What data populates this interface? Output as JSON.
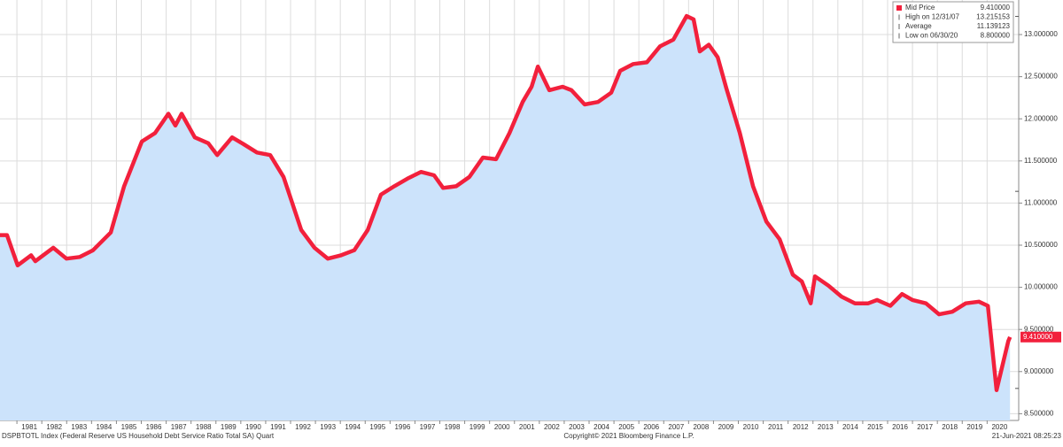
{
  "chart_data": {
    "type": "line",
    "footer_left": "DSPBTOTL Index (Federal Reserve US Household Debt Service Ratio Total SA)  Quart",
    "footer_center": "Copyright© 2021 Bloomberg Finance L.P.",
    "footer_right": "21-Jun-2021 08:25:23",
    "x": [
      1980.32,
      1980.6,
      1981.03,
      1981.57,
      1981.74,
      1982.46,
      1982.99,
      1983.53,
      1984.06,
      1984.77,
      1985.31,
      1986.02,
      1986.55,
      1987.09,
      1987.37,
      1987.62,
      1988.15,
      1988.69,
      1989.05,
      1989.65,
      1990.11,
      1990.65,
      1991.18,
      1991.72,
      1992.43,
      1992.96,
      1993.5,
      1994.03,
      1994.56,
      1995.1,
      1995.63,
      1996.17,
      1996.7,
      1997.24,
      1997.77,
      1998.13,
      1998.66,
      1999.19,
      1999.73,
      2000.26,
      2000.8,
      2001.33,
      2001.69,
      2001.94,
      2002.4,
      2002.93,
      2003.29,
      2003.82,
      2004.36,
      2004.89,
      2005.25,
      2005.78,
      2006.32,
      2006.85,
      2007.39,
      2007.92,
      2008.2,
      2008.45,
      2008.81,
      2009.17,
      2009.52,
      2010.06,
      2010.59,
      2011.13,
      2011.66,
      2012.19,
      2012.55,
      2012.91,
      2013.08,
      2013.62,
      2014.15,
      2014.69,
      2015.22,
      2015.58,
      2016.11,
      2016.58,
      2017.0,
      2017.54,
      2018.07,
      2018.6,
      2019.14,
      2019.67,
      2020.03,
      2020.38,
      2020.85,
      2020.92
    ],
    "series": [
      {
        "name": "Mid Price",
        "color": "#f2203c",
        "values": [
          10.62,
          10.62,
          10.26,
          10.38,
          10.31,
          10.47,
          10.34,
          10.36,
          10.44,
          10.65,
          11.2,
          11.73,
          11.83,
          12.06,
          11.92,
          12.06,
          11.78,
          11.71,
          11.57,
          11.78,
          11.7,
          11.6,
          11.57,
          11.31,
          10.68,
          10.47,
          10.34,
          10.38,
          10.44,
          10.68,
          11.1,
          11.2,
          11.29,
          11.37,
          11.33,
          11.18,
          11.2,
          11.31,
          11.54,
          11.52,
          11.83,
          12.2,
          12.38,
          12.62,
          12.34,
          12.38,
          12.34,
          12.17,
          12.2,
          12.31,
          12.57,
          12.65,
          12.67,
          12.86,
          12.94,
          13.22,
          13.18,
          12.8,
          12.88,
          12.73,
          12.36,
          11.83,
          11.2,
          10.78,
          10.57,
          10.15,
          10.07,
          9.81,
          10.13,
          10.02,
          9.89,
          9.81,
          9.81,
          9.85,
          9.78,
          9.92,
          9.85,
          9.81,
          9.68,
          9.71,
          9.81,
          9.83,
          9.78,
          8.78,
          9.36,
          9.41
        ]
      }
    ],
    "area_color": "#cce3fb",
    "xlim": [
      1980.32,
      2021.27
    ],
    "ylim": [
      8.42,
      13.41
    ],
    "xticks": [
      1981,
      1982,
      1983,
      1984,
      1985,
      1986,
      1987,
      1988,
      1989,
      1990,
      1991,
      1992,
      1993,
      1994,
      1995,
      1996,
      1997,
      1998,
      1999,
      2000,
      2001,
      2002,
      2003,
      2004,
      2005,
      2006,
      2007,
      2008,
      2009,
      2010,
      2011,
      2012,
      2013,
      2014,
      2015,
      2016,
      2017,
      2018,
      2019,
      2020
    ],
    "yticks": [
      {
        "value": 8.5,
        "label": "8.500000"
      },
      {
        "value": 9,
        "label": "9.000000"
      },
      {
        "value": 9.5,
        "label": "9.500000"
      },
      {
        "value": 10,
        "label": "10.000000"
      },
      {
        "value": 10.5,
        "label": "10.500000"
      },
      {
        "value": 11,
        "label": "11.000000"
      },
      {
        "value": 11.5,
        "label": "11.500000"
      },
      {
        "value": 12,
        "label": "12.000000"
      },
      {
        "value": 12.5,
        "label": "12.500000"
      },
      {
        "value": 13,
        "label": "13.000000"
      }
    ],
    "grid": true,
    "legend": {
      "names": [
        "Mid Price",
        "High on 12/31/07",
        "Average",
        "Low on 06/30/20"
      ],
      "values": [
        9.41,
        13.215153,
        11.139123,
        8.8
      ],
      "value_labels": [
        "9.410000",
        "13.215153",
        "11.139123",
        "8.800000"
      ]
    }
  }
}
